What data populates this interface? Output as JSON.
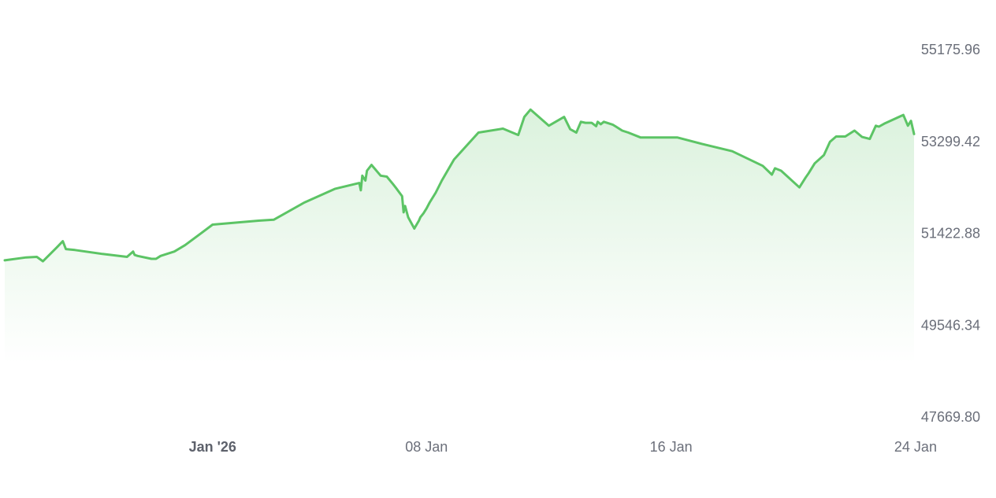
{
  "chart_data": {
    "type": "area",
    "line_color": "#5cc465",
    "fill_color": "#5cc465",
    "ylim": [
      47669.8,
      55175.96
    ],
    "y_ticks": [
      {
        "value": 55175.96,
        "label": "55175.96"
      },
      {
        "value": 53299.42,
        "label": "53299.42"
      },
      {
        "value": 51422.88,
        "label": "51422.88"
      },
      {
        "value": 49546.34,
        "label": "49546.34"
      },
      {
        "value": 47669.8,
        "label": "47669.80"
      }
    ],
    "x_ticks": [
      {
        "day": 1,
        "label": "Jan '26",
        "major": true
      },
      {
        "day": 8,
        "label": "08 Jan",
        "major": false
      },
      {
        "day": 16,
        "label": "16 Jan",
        "major": false
      },
      {
        "day": 24,
        "label": "24 Jan",
        "major": false
      }
    ],
    "x_unit": "day of month (Dec 2025 → Jan 2026)",
    "series": [
      {
        "x": [
          -5.8,
          -5.1,
          -4.75,
          -4.55,
          -4.1,
          -3.9,
          -3.8,
          -3.5,
          -2.6,
          -1.8,
          -1.6,
          -1.55,
          -1.45,
          -1.0,
          -0.85,
          -0.7,
          -0.25,
          0.1,
          1.0,
          2.5,
          3.0,
          4.0,
          5.0,
          5.8,
          5.85,
          5.9,
          6.0,
          6.05,
          6.2,
          6.5,
          6.7,
          6.9,
          7.0,
          7.2,
          7.25,
          7.3,
          7.4,
          7.6,
          7.75,
          7.8,
          7.9,
          8.0,
          8.1,
          8.3,
          8.5,
          8.9,
          9.7,
          10.5,
          11.0,
          11.2,
          11.4,
          12.0,
          12.5,
          12.7,
          12.9,
          13.05,
          13.2,
          13.4,
          13.55,
          13.6,
          13.7,
          13.8,
          14.1,
          14.2,
          14.3,
          14.4,
          14.6,
          15.0,
          16.2,
          17.0,
          18.0,
          19.0,
          19.3,
          19.4,
          19.6,
          20.2,
          20.4,
          20.5,
          20.7,
          21.0,
          21.2,
          21.4,
          21.7,
          22.0,
          22.25,
          22.5,
          22.7,
          22.8,
          23.0,
          23.6,
          23.75,
          23.85,
          23.95
        ],
        "y": [
          50870,
          50930,
          50940,
          50850,
          51130,
          51260,
          51100,
          51080,
          51000,
          50940,
          51050,
          50980,
          50960,
          50900,
          50900,
          50960,
          51050,
          51180,
          51600,
          51680,
          51700,
          52050,
          52330,
          52450,
          52300,
          52600,
          52500,
          52700,
          52820,
          52600,
          52580,
          52430,
          52350,
          52180,
          51850,
          51980,
          51750,
          51520,
          51680,
          51750,
          51830,
          51930,
          52050,
          52250,
          52500,
          52930,
          53480,
          53560,
          53430,
          53800,
          53950,
          53620,
          53800,
          53550,
          53480,
          53700,
          53680,
          53680,
          53610,
          53700,
          53650,
          53700,
          53640,
          53600,
          53560,
          53520,
          53480,
          53380,
          53380,
          53250,
          53100,
          52800,
          52620,
          52750,
          52700,
          52360,
          52560,
          52650,
          52850,
          53020,
          53290,
          53400,
          53400,
          53520,
          53390,
          53350,
          53620,
          53600,
          53670,
          53840,
          53620,
          53720,
          53450
        ]
      }
    ]
  }
}
